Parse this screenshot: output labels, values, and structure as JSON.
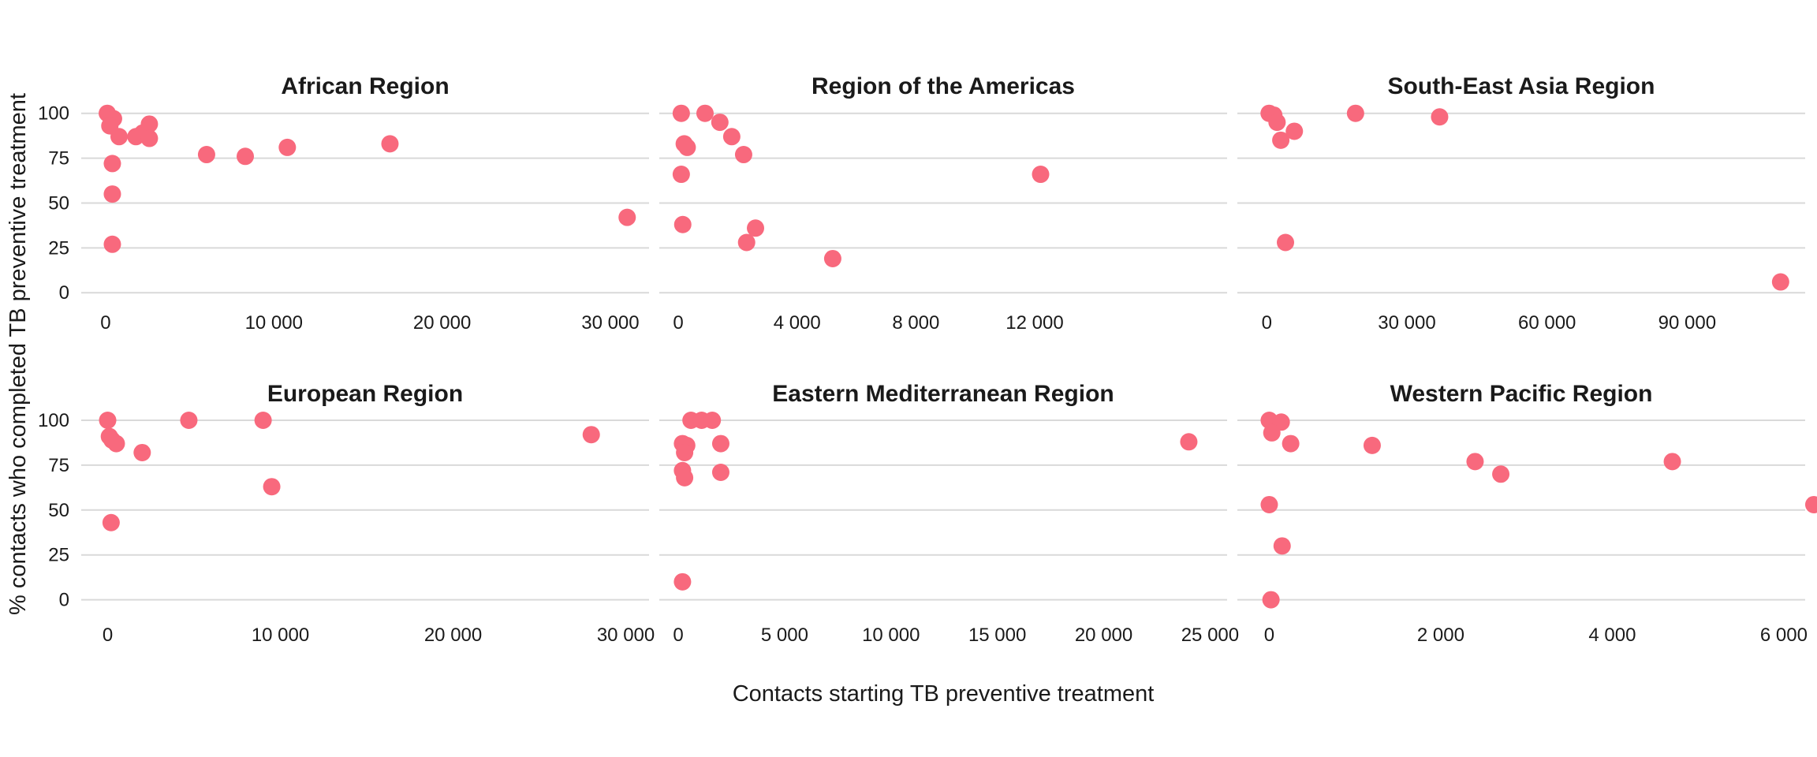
{
  "chart_data": {
    "type": "scatter",
    "title": "",
    "xlabel": "Contacts starting TB preventive treatment",
    "ylabel": "% contacts who completed TB preventive treatment",
    "point_color": "#f8697d",
    "gridline_color": "#d9d9d9",
    "text_color": "#1a1a1a",
    "grid": "horizontal-only",
    "legend": "none",
    "y_ticks": [
      100,
      75,
      50,
      25,
      0
    ],
    "y_tick_labels": [
      "100",
      "75",
      "50",
      "25",
      "0"
    ],
    "y_domain": [
      -4.5,
      107.5
    ],
    "facets": [
      {
        "title": "African Region",
        "row": 0,
        "col": 0,
        "x_domain": [
          -1450,
          32300
        ],
        "x_tick_values": [
          0,
          10000,
          20000,
          30000
        ],
        "x_tick_labels": [
          "0",
          "10 000",
          "20 000",
          "30 000"
        ],
        "points": [
          [
            100,
            100
          ],
          [
            470,
            97
          ],
          [
            250,
            93
          ],
          [
            800,
            87
          ],
          [
            1800,
            87
          ],
          [
            2200,
            89
          ],
          [
            2600,
            94
          ],
          [
            2600,
            86
          ],
          [
            400,
            72
          ],
          [
            400,
            55
          ],
          [
            400,
            27
          ],
          [
            6000,
            77
          ],
          [
            8300,
            76
          ],
          [
            10800,
            81
          ],
          [
            16900,
            83
          ],
          [
            31000,
            42
          ]
        ]
      },
      {
        "title": "Region of the Americas",
        "row": 0,
        "col": 1,
        "x_domain": [
          -640,
          18480
        ],
        "x_tick_values": [
          0,
          4000,
          8000,
          12000
        ],
        "x_tick_labels": [
          "0",
          "4 000",
          "8 000",
          "12 000"
        ],
        "points": [
          [
            100,
            100
          ],
          [
            900,
            100
          ],
          [
            1400,
            95
          ],
          [
            1800,
            87
          ],
          [
            200,
            83
          ],
          [
            300,
            81
          ],
          [
            2200,
            77
          ],
          [
            100,
            66
          ],
          [
            150,
            38
          ],
          [
            2600,
            36
          ],
          [
            2300,
            28
          ],
          [
            5200,
            19
          ],
          [
            12200,
            66
          ]
        ]
      },
      {
        "title": "South-East Asia Region",
        "row": 0,
        "col": 2,
        "x_domain": [
          -6300,
          115260
        ],
        "x_tick_values": [
          0,
          30000,
          60000,
          90000
        ],
        "x_tick_labels": [
          "0",
          "30 000",
          "60 000",
          "90 000"
        ],
        "points": [
          [
            500,
            100
          ],
          [
            1500,
            99
          ],
          [
            2200,
            95
          ],
          [
            3000,
            85
          ],
          [
            5900,
            90
          ],
          [
            19000,
            100
          ],
          [
            37000,
            98
          ],
          [
            4000,
            28
          ],
          [
            110000,
            6
          ]
        ]
      },
      {
        "title": "European Region",
        "row": 1,
        "col": 0,
        "x_domain": [
          -1530,
          31345
        ],
        "x_tick_values": [
          0,
          10000,
          20000,
          30000
        ],
        "x_tick_labels": [
          "0",
          "10 000",
          "20 000",
          "30 000"
        ],
        "points": [
          [
            0,
            100
          ],
          [
            100,
            91
          ],
          [
            250,
            89
          ],
          [
            500,
            87
          ],
          [
            2000,
            82
          ],
          [
            4700,
            100
          ],
          [
            9000,
            100
          ],
          [
            9500,
            63
          ],
          [
            200,
            43
          ],
          [
            28000,
            92
          ]
        ]
      },
      {
        "title": "Eastern Mediterranean Region",
        "row": 1,
        "col": 1,
        "x_domain": [
          -890,
          25800
        ],
        "x_tick_values": [
          0,
          5000,
          10000,
          15000,
          20000,
          25000
        ],
        "x_tick_labels": [
          "0",
          "5 000",
          "10 000",
          "15 000",
          "20 000",
          "25 000"
        ],
        "points": [
          [
            600,
            100
          ],
          [
            1100,
            100
          ],
          [
            1600,
            100
          ],
          [
            200,
            87
          ],
          [
            400,
            86
          ],
          [
            300,
            82
          ],
          [
            200,
            72
          ],
          [
            300,
            68
          ],
          [
            2000,
            87
          ],
          [
            2000,
            71
          ],
          [
            200,
            10
          ],
          [
            24000,
            88
          ]
        ]
      },
      {
        "title": "Western Pacific Region",
        "row": 1,
        "col": 2,
        "x_domain": [
          -372,
          6249
        ],
        "x_tick_values": [
          0,
          2000,
          4000,
          6000
        ],
        "x_tick_labels": [
          "0",
          "2 000",
          "4 000",
          "6 000"
        ],
        "points": [
          [
            0,
            100
          ],
          [
            140,
            99
          ],
          [
            30,
            93
          ],
          [
            250,
            87
          ],
          [
            1200,
            86
          ],
          [
            2400,
            77
          ],
          [
            2700,
            70
          ],
          [
            4700,
            77
          ],
          [
            6350,
            53
          ],
          [
            0,
            53
          ],
          [
            150,
            30
          ],
          [
            20,
            0
          ]
        ]
      }
    ]
  }
}
